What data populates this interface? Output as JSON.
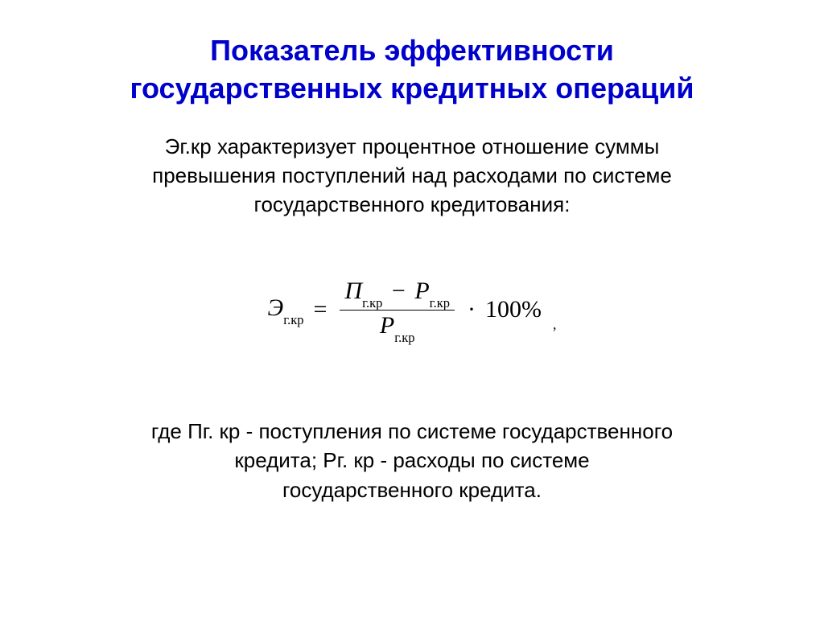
{
  "title_line1": "Показатель эффективности",
  "title_line2": "государственных кредитных операций",
  "title_color": "#0000cc",
  "title_fontsize": 36,
  "intro": {
    "line1": "Эг.кр характеризует процентное отношение суммы",
    "line2": "превышения поступлений над расходами по системе",
    "line3": "государственного кредитования:"
  },
  "body_fontsize": 26,
  "body_color": "#000000",
  "formula": {
    "lhs_symbol": "Э",
    "lhs_sub": "г.кр",
    "num_term1_sym": "П",
    "num_term1_sub": "г.кр",
    "num_term2_sym": "Р",
    "num_term2_sub": "г.кр",
    "den_sym": "Р",
    "den_sub": "г.кр",
    "multiplier": "100%",
    "trailing_comma": ",",
    "fontsize": 30
  },
  "where": {
    "line1": "где Пг. кр - поступления по системе государственного",
    "line2": "кредита; Рг. кр - расходы по системе",
    "line3": "государственного кредита."
  }
}
